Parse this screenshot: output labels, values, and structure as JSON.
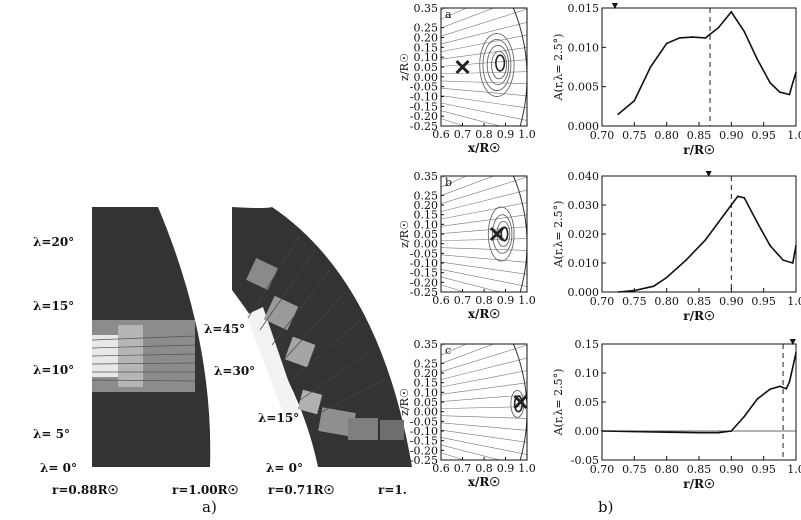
{
  "figure": {
    "part_a_label": "a)",
    "part_b_label": "b)",
    "wedge_left": {
      "angle_labels": [
        "λ=20°",
        "λ=15°",
        "λ=10°",
        "λ= 5°",
        "λ= 0°"
      ],
      "angles": [
        20,
        15,
        10,
        5,
        0
      ],
      "r_inner_label": "r=0.88R☉",
      "r_outer_label": "r=1.00R☉"
    },
    "wedge_right": {
      "angle_labels": [
        "λ=45°",
        "λ=30°",
        "λ=15°",
        "λ= 0°"
      ],
      "angles": [
        45,
        30,
        15,
        0
      ],
      "r_inner_label": "r=0.71R☉",
      "r_outer_label": "r=1."
    },
    "colors": {
      "wedge_fill": "#333333",
      "band_fill": "#9a9a9a",
      "panel_border": "#111111"
    }
  },
  "chart_data": [
    {
      "type": "contour",
      "panel": "a",
      "xlabel": "x/R☉",
      "ylabel": "z/R☉",
      "xlim": [
        0.6,
        1.0
      ],
      "ylim": [
        -0.25,
        0.35
      ],
      "xticks": [
        "0.6",
        "0.7",
        "0.8",
        "0.9",
        "1.0"
      ],
      "yticks": [
        "0.35",
        "0.25",
        "0.20",
        "0.15",
        "0.10",
        "0.05",
        "0.00",
        "-0.05",
        "-0.10",
        "-0.15",
        "-0.20",
        "-0.25"
      ],
      "ytick_values": [
        0.35,
        0.25,
        0.2,
        0.15,
        0.1,
        0.05,
        0.0,
        -0.05,
        -0.1,
        -0.15,
        -0.2,
        -0.25
      ],
      "marker": {
        "x": 0.7,
        "y": 0.05,
        "symbol": "x"
      },
      "contours": [
        {
          "cx": 0.86,
          "cy": 0.06,
          "rx": 0.08,
          "ry": 0.16
        },
        {
          "cx": 0.86,
          "cy": 0.06,
          "rx": 0.065,
          "ry": 0.13
        },
        {
          "cx": 0.865,
          "cy": 0.06,
          "rx": 0.05,
          "ry": 0.1
        },
        {
          "cx": 0.87,
          "cy": 0.06,
          "rx": 0.035,
          "ry": 0.07
        },
        {
          "cx": 0.875,
          "cy": 0.07,
          "rx": 0.02,
          "ry": 0.04
        }
      ]
    },
    {
      "type": "line",
      "panel": "a",
      "xlabel": "r/R☉",
      "ylabel": "A(r,λ= 2.5°)",
      "xlim": [
        0.7,
        1.0
      ],
      "ylim": [
        0.0,
        0.015
      ],
      "xticks": [
        "0.70",
        "0.75",
        "0.80",
        "0.85",
        "0.90",
        "0.95",
        "1.0"
      ],
      "xtick_values": [
        0.7,
        0.75,
        0.8,
        0.85,
        0.9,
        0.95,
        1.0
      ],
      "yticks": [
        "0.000",
        "0.005",
        "0.010",
        "0.015"
      ],
      "ytick_values": [
        0.0,
        0.005,
        0.01,
        0.015
      ],
      "dashed_x": 0.867,
      "top_marker_x": 0.72,
      "x": [
        0.725,
        0.75,
        0.775,
        0.8,
        0.82,
        0.84,
        0.86,
        0.88,
        0.9,
        0.92,
        0.94,
        0.96,
        0.975,
        0.99,
        0.995,
        1.0
      ],
      "y": [
        0.0015,
        0.0032,
        0.0075,
        0.0105,
        0.0112,
        0.0113,
        0.0112,
        0.0125,
        0.0145,
        0.012,
        0.0085,
        0.0055,
        0.0043,
        0.004,
        0.0055,
        0.0068
      ]
    },
    {
      "type": "contour",
      "panel": "b",
      "xlabel": "x/R☉",
      "ylabel": "z/R☉",
      "xlim": [
        0.6,
        1.0
      ],
      "ylim": [
        -0.25,
        0.35
      ],
      "xticks": [
        "0.6",
        "0.7",
        "0.8",
        "0.9",
        "1.0"
      ],
      "yticks": [
        "0.35",
        "0.25",
        "0.20",
        "0.15",
        "0.10",
        "0.05",
        "0.00",
        "-0.05",
        "-0.10",
        "-0.15",
        "-0.20",
        "-0.25"
      ],
      "ytick_values": [
        0.35,
        0.25,
        0.2,
        0.15,
        0.1,
        0.05,
        0.0,
        -0.05,
        -0.1,
        -0.15,
        -0.2,
        -0.25
      ],
      "marker": {
        "x": 0.86,
        "y": 0.05,
        "symbol": "x"
      },
      "contours": [
        {
          "cx": 0.88,
          "cy": 0.05,
          "rx": 0.06,
          "ry": 0.14
        },
        {
          "cx": 0.885,
          "cy": 0.05,
          "rx": 0.045,
          "ry": 0.1
        },
        {
          "cx": 0.89,
          "cy": 0.05,
          "rx": 0.03,
          "ry": 0.065
        },
        {
          "cx": 0.895,
          "cy": 0.05,
          "rx": 0.015,
          "ry": 0.035
        }
      ]
    },
    {
      "type": "line",
      "panel": "b",
      "xlabel": "r/R☉",
      "ylabel": "A(r,λ= 2.5°)",
      "xlim": [
        0.7,
        1.0
      ],
      "ylim": [
        0.0,
        0.04
      ],
      "xticks": [
        "0.70",
        "0.75",
        "0.80",
        "0.85",
        "0.90",
        "0.95",
        "1.0"
      ],
      "xtick_values": [
        0.7,
        0.75,
        0.8,
        0.85,
        0.9,
        0.95,
        1.0
      ],
      "yticks": [
        "0.000",
        "0.010",
        "0.020",
        "0.030",
        "0.040"
      ],
      "ytick_values": [
        0.0,
        0.01,
        0.02,
        0.03,
        0.04
      ],
      "dashed_x": 0.9,
      "top_marker_x": 0.865,
      "x": [
        0.725,
        0.75,
        0.78,
        0.8,
        0.83,
        0.86,
        0.88,
        0.9,
        0.91,
        0.92,
        0.94,
        0.96,
        0.98,
        0.995,
        1.0
      ],
      "y": [
        0.0,
        0.0005,
        0.002,
        0.005,
        0.011,
        0.018,
        0.024,
        0.03,
        0.033,
        0.0325,
        0.024,
        0.016,
        0.011,
        0.01,
        0.016
      ]
    },
    {
      "type": "contour",
      "panel": "c",
      "xlabel": "x/R☉",
      "ylabel": "z/R☉",
      "xlim": [
        0.6,
        1.0
      ],
      "ylim": [
        -0.25,
        0.35
      ],
      "xticks": [
        "0.6",
        "0.7",
        "0.8",
        "0.9",
        "1.0"
      ],
      "yticks": [
        "0.35",
        "0.25",
        "0.20",
        "0.15",
        "0.10",
        "0.05",
        "0.00",
        "-0.05",
        "-0.10",
        "-0.15",
        "-0.20",
        "-0.25"
      ],
      "ytick_values": [
        0.35,
        0.25,
        0.2,
        0.15,
        0.1,
        0.05,
        0.0,
        -0.05,
        -0.1,
        -0.15,
        -0.2,
        -0.25
      ],
      "marker": {
        "x": 0.97,
        "y": 0.05,
        "symbol": "x"
      },
      "contours": [
        {
          "cx": 0.955,
          "cy": 0.04,
          "rx": 0.03,
          "ry": 0.07
        },
        {
          "cx": 0.96,
          "cy": 0.04,
          "rx": 0.018,
          "ry": 0.04
        }
      ]
    },
    {
      "type": "line",
      "panel": "c",
      "xlabel": "r/R☉",
      "ylabel": "A(r,λ= 2.5°)",
      "xlim": [
        0.7,
        1.0
      ],
      "ylim": [
        -0.05,
        0.15
      ],
      "xticks": [
        "0.70",
        "0.75",
        "0.80",
        "0.85",
        "0.90",
        "0.95",
        "1.0"
      ],
      "xtick_values": [
        0.7,
        0.75,
        0.8,
        0.85,
        0.9,
        0.95,
        1.0
      ],
      "yticks": [
        "0.15",
        "0.10",
        "0.05",
        "0.00",
        "-0.05"
      ],
      "ytick_values": [
        0.15,
        0.1,
        0.05,
        0.0,
        -0.05
      ],
      "dashed_x": 0.98,
      "top_marker_x": 0.995,
      "zero_line": true,
      "x": [
        0.7,
        0.75,
        0.8,
        0.85,
        0.88,
        0.9,
        0.92,
        0.94,
        0.96,
        0.975,
        0.985,
        0.99,
        0.995,
        1.0
      ],
      "y": [
        0.0,
        -0.001,
        -0.002,
        -0.003,
        -0.003,
        0.0,
        0.025,
        0.055,
        0.072,
        0.077,
        0.073,
        0.085,
        0.11,
        0.135
      ]
    }
  ]
}
